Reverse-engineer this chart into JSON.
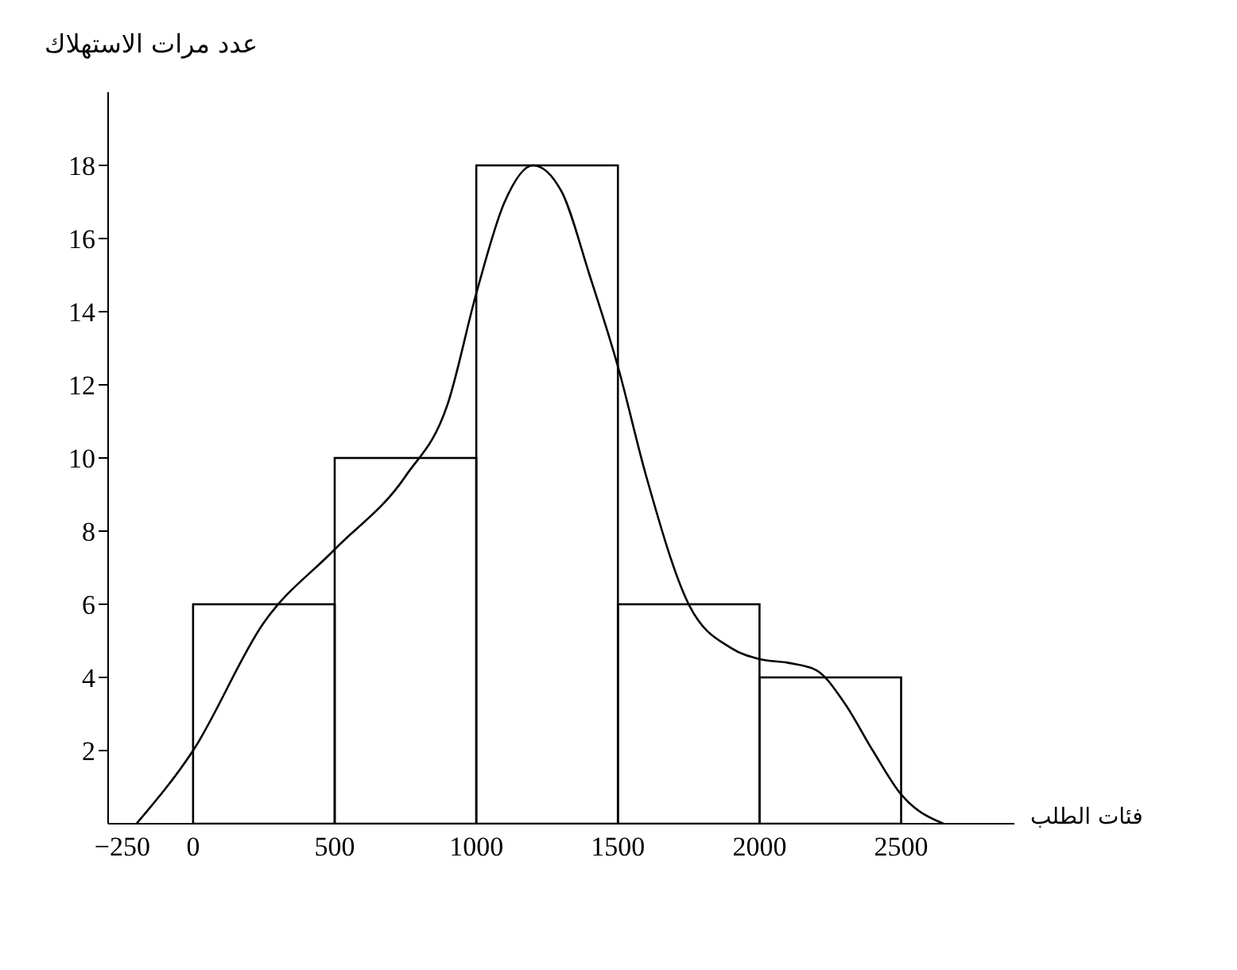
{
  "chart_data": {
    "type": "histogram",
    "xlabel": "فئات الطلب",
    "ylabel": "عدد مرات الاستهلاك",
    "xlim": [
      -300,
      2900
    ],
    "xticks": [
      {
        "value": -250,
        "label": "−250"
      },
      0,
      500,
      1000,
      1500,
      2000,
      2500
    ],
    "grid": false,
    "legend": false,
    "ylim": [
      0,
      20
    ],
    "yticks": [
      2,
      4,
      6,
      8,
      10,
      12,
      14,
      16,
      18
    ],
    "series": [
      {
        "color": "#000000",
        "bins": [
          0,
          500,
          1000,
          1500,
          2000,
          2500
        ],
        "values": [
          6,
          10,
          18,
          6,
          4
        ]
      },
      {
        "type": "line",
        "color": "#000000",
        "marker": "none",
        "line_style": "solid",
        "x": [
          -200,
          0,
          250,
          500,
          750,
          900,
          1000,
          1100,
          1200,
          1300,
          1400,
          1500,
          1600,
          1750,
          1900,
          2000,
          2100,
          2200,
          2300,
          2400,
          2500,
          2650
        ],
        "values": [
          0,
          2,
          5.5,
          7.5,
          9.5,
          11.5,
          14.5,
          17,
          18,
          17.3,
          15,
          12.5,
          9.5,
          6,
          4.8,
          4.5,
          4.4,
          4.2,
          3.3,
          2,
          0.8,
          0
        ]
      }
    ]
  }
}
